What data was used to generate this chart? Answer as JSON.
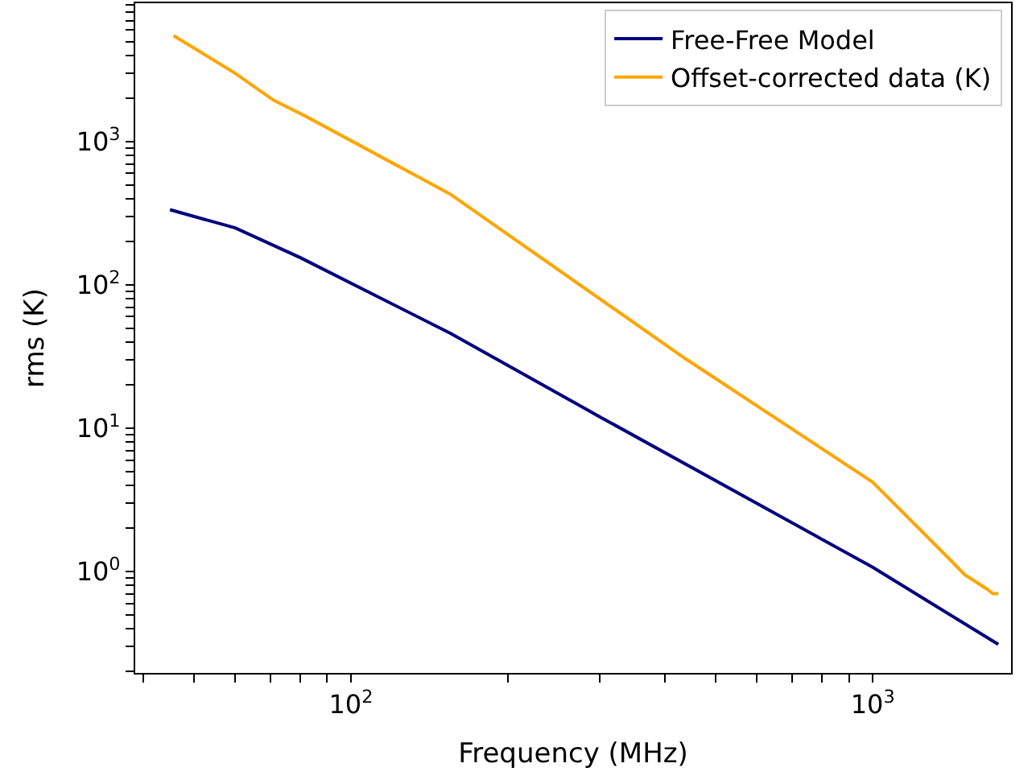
{
  "chart_data": {
    "type": "line",
    "xlabel": "Frequency (MHz)",
    "ylabel": "rms (K)",
    "log": "xy",
    "legend": "top right",
    "marker": "none",
    "line_style": "solid",
    "xlim": [
      38.6,
      1841
    ],
    "ylim": [
      0.196,
      9250
    ],
    "xticks": [
      {
        "value": 40,
        "label": null
      },
      {
        "value": 50,
        "label": null
      },
      {
        "value": 60,
        "label": null
      },
      {
        "value": 70,
        "label": null
      },
      {
        "value": 80,
        "label": null
      },
      {
        "value": 90,
        "label": null
      },
      {
        "value": 100,
        "label": "10$^{2}$"
      },
      {
        "value": 200,
        "label": null
      },
      {
        "value": 300,
        "label": null
      },
      {
        "value": 400,
        "label": null
      },
      {
        "value": 500,
        "label": null
      },
      {
        "value": 600,
        "label": null
      },
      {
        "value": 700,
        "label": null
      },
      {
        "value": 800,
        "label": null
      },
      {
        "value": 900,
        "label": null
      },
      {
        "value": 1000,
        "label": "10$^{3}$"
      }
    ],
    "yticks": [
      {
        "value": 0.2,
        "label": null
      },
      {
        "value": 0.3,
        "label": null
      },
      {
        "value": 0.4,
        "label": null
      },
      {
        "value": 0.5,
        "label": null
      },
      {
        "value": 0.6,
        "label": null
      },
      {
        "value": 0.7,
        "label": null
      },
      {
        "value": 0.8,
        "label": null
      },
      {
        "value": 0.9,
        "label": null
      },
      {
        "value": 1,
        "label": "10$^{0}$"
      },
      {
        "value": 2,
        "label": null
      },
      {
        "value": 3,
        "label": null
      },
      {
        "value": 4,
        "label": null
      },
      {
        "value": 5,
        "label": null
      },
      {
        "value": 6,
        "label": null
      },
      {
        "value": 7,
        "label": null
      },
      {
        "value": 8,
        "label": null
      },
      {
        "value": 9,
        "label": null
      },
      {
        "value": 10,
        "label": "10$^{1}$"
      },
      {
        "value": 20,
        "label": null
      },
      {
        "value": 30,
        "label": null
      },
      {
        "value": 40,
        "label": null
      },
      {
        "value": 50,
        "label": null
      },
      {
        "value": 60,
        "label": null
      },
      {
        "value": 70,
        "label": null
      },
      {
        "value": 80,
        "label": null
      },
      {
        "value": 90,
        "label": null
      },
      {
        "value": 100,
        "label": "10$^{2}$"
      },
      {
        "value": 200,
        "label": null
      },
      {
        "value": 300,
        "label": null
      },
      {
        "value": 400,
        "label": null
      },
      {
        "value": 500,
        "label": null
      },
      {
        "value": 600,
        "label": null
      },
      {
        "value": 700,
        "label": null
      },
      {
        "value": 800,
        "label": null
      },
      {
        "value": 900,
        "label": null
      },
      {
        "value": 1000,
        "label": "10$^{3}$"
      },
      {
        "value": 2000,
        "label": null
      },
      {
        "value": 3000,
        "label": null
      },
      {
        "value": 4000,
        "label": null
      },
      {
        "value": 5000,
        "label": null
      },
      {
        "value": 6000,
        "label": null
      },
      {
        "value": 7000,
        "label": null
      },
      {
        "value": 8000,
        "label": null
      },
      {
        "value": 9000,
        "label": null
      }
    ],
    "series": [
      {
        "name": "Free-Free Model",
        "color": "#000080",
        "x": [
          45,
          60,
          80,
          155,
          300,
          1000,
          1740
        ],
        "values": [
          335,
          250,
          155,
          46,
          12,
          1.07,
          0.31
        ]
      },
      {
        "name": "Offset-corrected data (K)",
        "color": "#ffa500",
        "x": [
          45.7,
          60,
          71,
          82,
          155,
          435,
          1000,
          1400,
          1500,
          1650,
          1700,
          1740
        ],
        "values": [
          5500,
          3000,
          1950,
          1500,
          430,
          31,
          4.2,
          1.23,
          0.95,
          0.76,
          0.7,
          0.7
        ]
      }
    ]
  }
}
